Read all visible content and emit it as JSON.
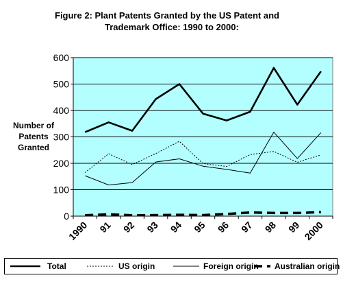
{
  "title_line1": "Figure 2:  Plant Patents Granted by the US Patent and",
  "title_line2": "Trademark Office: 1990 to 2000:",
  "ylabel_lines": [
    "Number of",
    "Patents",
    "Granted"
  ],
  "colors": {
    "plot_bg": "#b3ffff",
    "frame": "#808080",
    "line": "#000000"
  },
  "chart_data": {
    "type": "line",
    "title": "Figure 2:  Plant Patents Granted by the US Patent and Trademark Office: 1990 to 2000:",
    "xlabel": "",
    "ylabel": "Number of Patents Granted",
    "categories": [
      "1990",
      "91",
      "92",
      "93",
      "94",
      "95",
      "96",
      "97",
      "98",
      "99",
      "2000"
    ],
    "ylim": [
      0,
      600
    ],
    "yticks": [
      0,
      100,
      200,
      300,
      400,
      500,
      600
    ],
    "grid": true,
    "legend_position": "bottom",
    "series": [
      {
        "name": "Total",
        "style": "thick-solid",
        "values": [
          318,
          355,
          323,
          443,
          500,
          388,
          362,
          395,
          561,
          422,
          548
        ]
      },
      {
        "name": "US origin",
        "style": "dotted",
        "values": [
          165,
          236,
          195,
          237,
          283,
          199,
          188,
          233,
          245,
          204,
          232
        ]
      },
      {
        "name": "Foreign origin",
        "style": "thin-solid",
        "values": [
          153,
          118,
          127,
          205,
          217,
          189,
          177,
          163,
          318,
          218,
          316
        ]
      },
      {
        "name": "Australian origin",
        "style": "thick-dashed",
        "values": [
          3,
          7,
          3,
          4,
          5,
          4,
          8,
          14,
          12,
          12,
          15
        ]
      }
    ]
  }
}
